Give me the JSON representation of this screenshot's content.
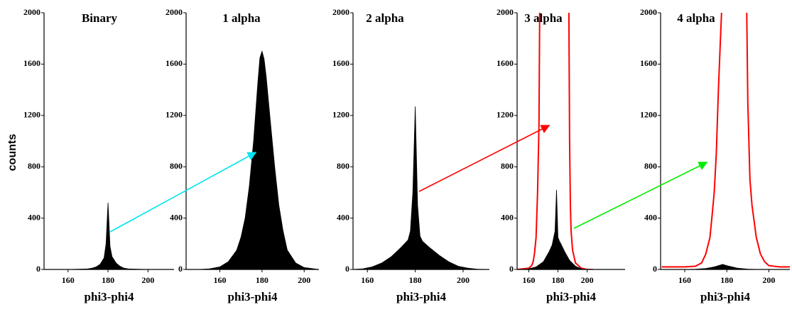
{
  "chart_data": [
    {
      "type": "area",
      "title": "Binary",
      "xlabel": "phi3-phi4",
      "ylabel": "counts",
      "xlim": [
        148,
        213
      ],
      "ylim": [
        0,
        2000
      ],
      "xticks": [
        160,
        180,
        200
      ],
      "yticks": [
        0,
        400,
        800,
        1200,
        1600,
        2000
      ],
      "series": [
        {
          "color": "#000000",
          "fill": true,
          "x": [
            148,
            160,
            165,
            170,
            172,
            174,
            176,
            178,
            179,
            180,
            181,
            182,
            184,
            186,
            188,
            190,
            195,
            200,
            212
          ],
          "values": [
            0,
            0,
            2,
            5,
            10,
            20,
            40,
            90,
            200,
            520,
            180,
            100,
            50,
            25,
            10,
            5,
            2,
            0,
            0
          ]
        }
      ]
    },
    {
      "type": "area",
      "title": "1 alpha",
      "xlabel": "phi3-phi4",
      "xlim": [
        144,
        207
      ],
      "ylim": [
        0,
        2000
      ],
      "xticks": [
        160,
        180,
        200
      ],
      "yticks": [
        0,
        400,
        800,
        1200,
        1600,
        2000
      ],
      "series": [
        {
          "color": "#000000",
          "fill": true,
          "x": [
            144,
            150,
            155,
            160,
            164,
            168,
            170,
            172,
            174,
            176,
            178,
            179,
            180,
            181,
            182,
            184,
            186,
            188,
            190,
            192,
            196,
            200,
            207
          ],
          "values": [
            0,
            0,
            5,
            20,
            60,
            150,
            250,
            400,
            650,
            1000,
            1450,
            1650,
            1700,
            1640,
            1500,
            1150,
            800,
            500,
            300,
            150,
            50,
            15,
            0
          ]
        }
      ]
    },
    {
      "type": "area",
      "title": "2 alpha",
      "xlabel": "phi3-phi4",
      "xlim": [
        154,
        211
      ],
      "ylim": [
        0,
        2000
      ],
      "xticks": [
        160,
        180,
        200
      ],
      "yticks": [
        0,
        400,
        800,
        1200,
        1600,
        2000
      ],
      "series": [
        {
          "color": "#000000",
          "fill": true,
          "x": [
            154,
            158,
            162,
            166,
            170,
            174,
            177,
            178,
            179,
            180,
            181,
            182,
            183,
            186,
            190,
            194,
            198,
            202,
            206,
            211
          ],
          "values": [
            0,
            5,
            20,
            50,
            100,
            170,
            230,
            300,
            600,
            1270,
            500,
            260,
            220,
            170,
            110,
            60,
            25,
            10,
            2,
            0
          ]
        }
      ]
    },
    {
      "type": "area",
      "title": "3 alpha",
      "xlabel": "phi3-phi4",
      "xlim": [
        152,
        226
      ],
      "ylim": [
        0,
        2000
      ],
      "xticks": [
        160,
        180,
        200
      ],
      "yticks": [
        0,
        400,
        800,
        1200,
        1600,
        2000
      ],
      "series": [
        {
          "color": "#ff0000",
          "fill": false,
          "x": [
            152,
            156,
            160,
            162,
            163,
            164,
            165,
            166,
            167,
            167.5,
            178,
            187.5,
            188,
            188.5,
            189,
            190,
            192,
            196,
            200,
            204
          ],
          "values": [
            0,
            5,
            10,
            30,
            60,
            130,
            250,
            600,
            1130,
            2000,
            null,
            2000,
            1000,
            500,
            300,
            150,
            50,
            10,
            0,
            0
          ]
        },
        {
          "color": "#000000",
          "fill": true,
          "x": [
            155,
            160,
            165,
            170,
            174,
            176,
            178,
            179,
            180,
            181,
            182,
            185,
            188,
            192,
            196,
            200,
            204
          ],
          "values": [
            0,
            5,
            20,
            60,
            140,
            190,
            300,
            620,
            250,
            220,
            200,
            130,
            70,
            25,
            5,
            0,
            0
          ]
        }
      ]
    },
    {
      "type": "area",
      "title": "4  alpha",
      "xlabel": "phi3-phi4",
      "xlim": [
        148.5,
        210
      ],
      "ylim": [
        0,
        2000
      ],
      "xticks": [
        160,
        180,
        200
      ],
      "yticks": [
        0,
        400,
        800,
        1200,
        1600,
        2000
      ],
      "series": [
        {
          "color": "#ff0000",
          "fill": false,
          "x": [
            149,
            160,
            165,
            168,
            170,
            172,
            173,
            174,
            175,
            176,
            177,
            177.5,
            184,
            189.5,
            190,
            191,
            192,
            194,
            196,
            198,
            200,
            205,
            210
          ],
          "values": [
            20,
            20,
            25,
            50,
            120,
            250,
            420,
            600,
            900,
            1400,
            1800,
            2000,
            null,
            2000,
            1300,
            700,
            500,
            250,
            120,
            60,
            30,
            20,
            20
          ]
        },
        {
          "color": "#000000",
          "fill": true,
          "x": [
            160,
            165,
            170,
            174,
            176,
            178,
            180,
            182,
            185,
            190,
            195
          ],
          "values": [
            0,
            2,
            8,
            20,
            30,
            40,
            30,
            22,
            10,
            3,
            0
          ]
        }
      ]
    }
  ]
}
